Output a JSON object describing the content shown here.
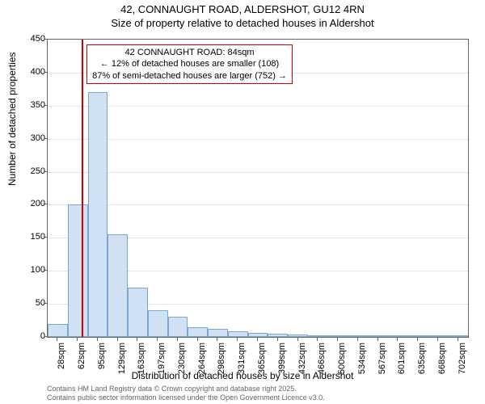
{
  "chart": {
    "type": "histogram",
    "title_line1": "42, CONNAUGHT ROAD, ALDERSHOT, GU12 4RN",
    "title_line2": "Size of property relative to detached houses in Aldershot",
    "y_axis_label": "Number of detached properties",
    "x_axis_label": "Distribution of detached houses by size in Aldershot",
    "background_color": "#ffffff",
    "plot_border_color": "#646464",
    "grid_color": "#e5e5e5",
    "bar_fill_color": "#cfe1f3",
    "bar_border_color": "#7aa6d6",
    "marker_color": "#cc0000",
    "annotation_border_color": "#cc0000",
    "y_ticks": [
      0,
      50,
      100,
      150,
      200,
      250,
      300,
      350,
      400,
      450
    ],
    "y_max": 450,
    "x_tick_labels": [
      "28sqm",
      "62sqm",
      "95sqm",
      "129sqm",
      "163sqm",
      "197sqm",
      "230sqm",
      "264sqm",
      "298sqm",
      "331sqm",
      "365sqm",
      "399sqm",
      "432sqm",
      "466sqm",
      "500sqm",
      "534sqm",
      "567sqm",
      "601sqm",
      "635sqm",
      "668sqm",
      "702sqm"
    ],
    "bar_values": [
      20,
      200,
      370,
      155,
      75,
      40,
      30,
      15,
      12,
      8,
      6,
      5,
      4,
      3,
      3,
      2,
      2,
      1,
      1,
      1,
      1
    ],
    "marker_bin_index": 1.7,
    "annotation": {
      "line1": "42 CONNAUGHT ROAD: 84sqm",
      "line2": "← 12% of detached houses are smaller (108)",
      "line3": "87% of semi-detached houses are larger (752) →"
    },
    "footer_line1": "Contains HM Land Registry data © Crown copyright and database right 2025.",
    "footer_line2": "Contains public sector information licensed under the Open Government Licence v3.0.",
    "title_fontsize": 13,
    "axis_label_fontsize": 12,
    "tick_fontsize": 11,
    "annotation_fontsize": 11,
    "footer_fontsize": 9
  }
}
